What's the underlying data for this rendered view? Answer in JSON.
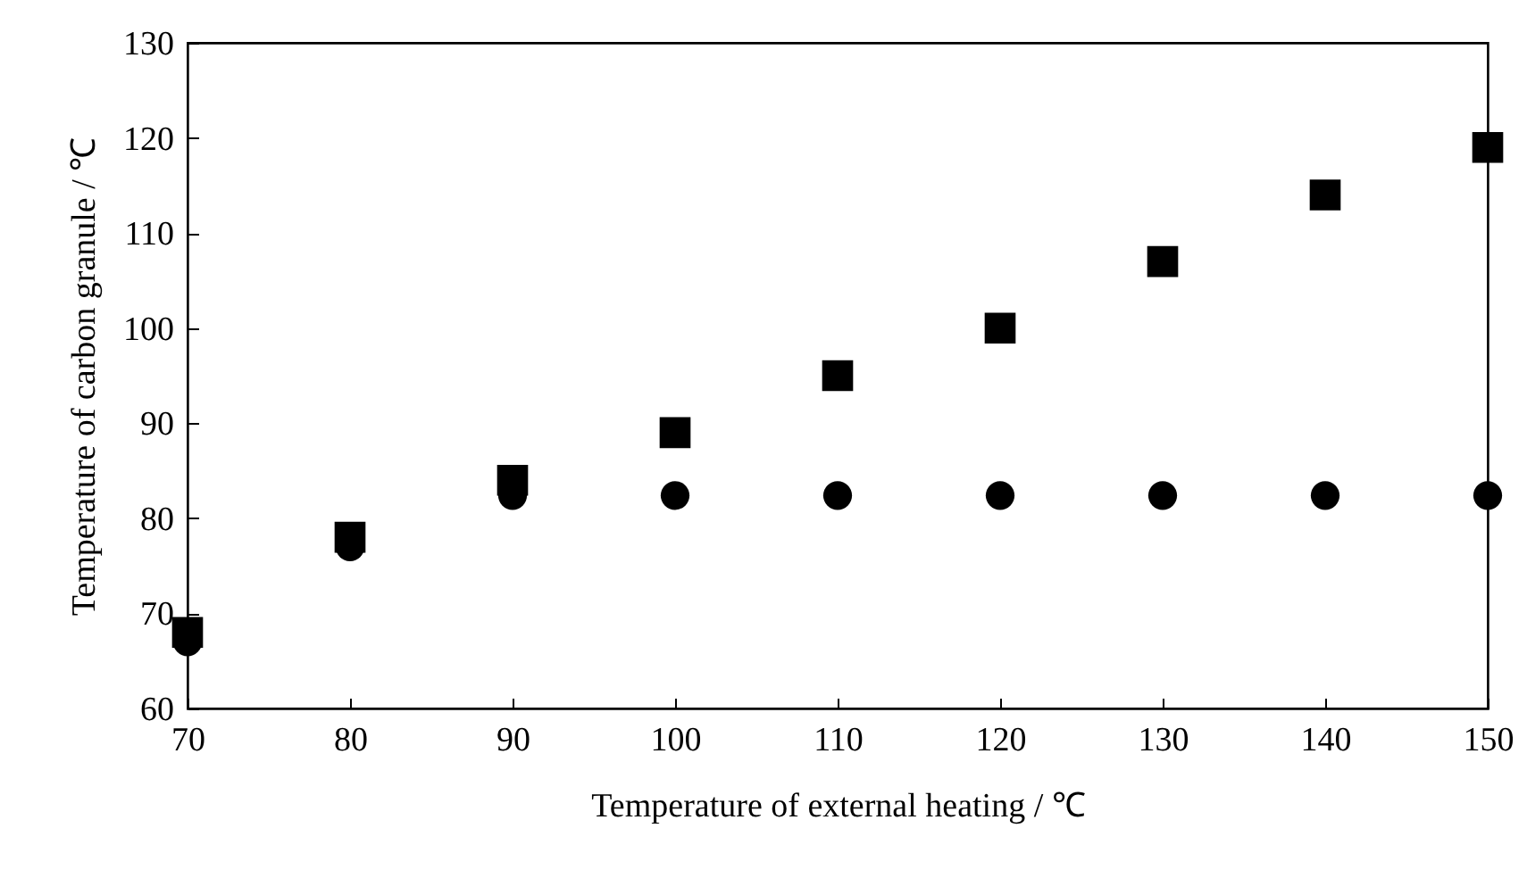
{
  "chart_data": {
    "type": "scatter",
    "xlabel": "Temperature of external heating / ℃",
    "ylabel": "Temperature of carbon granule / ℃",
    "x": [
      70,
      80,
      90,
      100,
      110,
      120,
      130,
      140,
      150
    ],
    "series": [
      {
        "color": "#000000",
        "marker": "square",
        "values": [
          68,
          78,
          84,
          89,
          95,
          100,
          107,
          114,
          119
        ]
      },
      {
        "color": "#000000",
        "marker": "circle",
        "values": [
          67,
          77,
          82.4,
          82.4,
          82.4,
          82.4,
          82.4,
          82.4,
          82.4
        ]
      }
    ],
    "xlim": [
      70,
      150
    ],
    "xticks": [
      70,
      80,
      90,
      100,
      110,
      120,
      130,
      140,
      150
    ],
    "ylim": [
      60,
      130
    ],
    "yticks": [
      60,
      70,
      80,
      90,
      100,
      110,
      120,
      130
    ],
    "grid": false
  }
}
